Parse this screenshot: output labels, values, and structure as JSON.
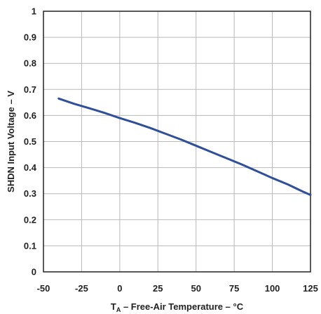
{
  "chart_data": {
    "type": "line",
    "title": "",
    "xlabel_main": "T",
    "xlabel_sub": "A",
    "xlabel_rest": " – Free-Air Temperature – °C",
    "ylabel": "SHDN Input Voltage – V",
    "xlim": [
      -50,
      125
    ],
    "ylim": [
      0,
      1
    ],
    "xticks": [
      -50,
      -25,
      0,
      25,
      50,
      75,
      100,
      125
    ],
    "yticks": [
      0,
      0.1,
      0.2,
      0.3,
      0.4,
      0.5,
      0.6,
      0.7,
      0.8,
      0.9,
      1
    ],
    "xtick_labels": [
      "-50",
      "-25",
      "0",
      "25",
      "50",
      "75",
      "100",
      "125"
    ],
    "ytick_labels": [
      "0",
      "0.1",
      "0.2",
      "0.3",
      "0.4",
      "0.5",
      "0.6",
      "0.7",
      "0.8",
      "0.9",
      "1"
    ],
    "grid": true,
    "line_color": "#2f4f9a",
    "series": [
      {
        "x": [
          -40,
          -30,
          -20,
          -10,
          0,
          10,
          20,
          30,
          40,
          50,
          60,
          70,
          80,
          90,
          100,
          110,
          120,
          125
        ],
        "y": [
          0.665,
          0.645,
          0.628,
          0.61,
          0.59,
          0.572,
          0.552,
          0.53,
          0.508,
          0.484,
          0.46,
          0.436,
          0.412,
          0.386,
          0.36,
          0.336,
          0.308,
          0.295
        ]
      }
    ]
  }
}
